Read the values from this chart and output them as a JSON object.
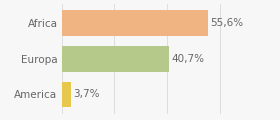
{
  "categories": [
    "America",
    "Europa",
    "Africa"
  ],
  "values": [
    3.7,
    40.7,
    55.6
  ],
  "bar_colors": [
    "#e8c84a",
    "#b5c98a",
    "#f0b482"
  ],
  "labels": [
    "3,7%",
    "40,7%",
    "55,6%"
  ],
  "xlim": [
    0,
    70
  ],
  "background_color": "#f7f7f7",
  "bar_height": 0.72,
  "label_fontsize": 7.5,
  "tick_fontsize": 7.5,
  "grid_color": "#d8d8d8",
  "text_color": "#666666"
}
